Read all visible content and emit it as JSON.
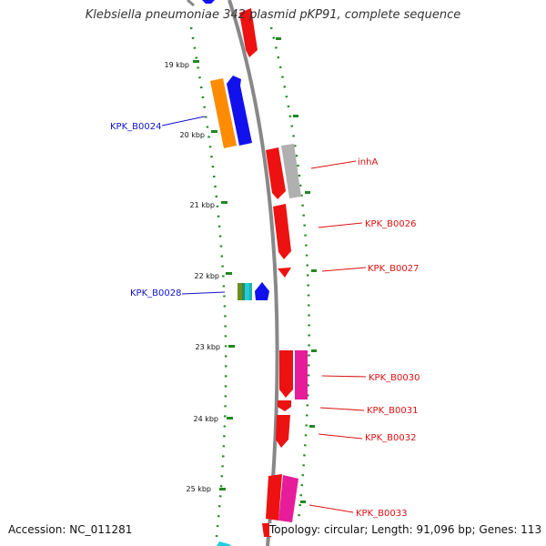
{
  "title": "Klebsiella pneumoniae 342 plasmid pKP91, complete sequence",
  "accession": "Accession: NC_011281",
  "topology": "Topology: circular; Length: 91,096 bp; Genes: 113",
  "ticks": [
    "19 kbp",
    "20 kbp",
    "21 kbp",
    "22 kbp",
    "23 kbp",
    "24 kbp",
    "25 kbp"
  ],
  "gene_labels": {
    "KPK_B0024": "KPK_B0024",
    "inhA": "inhA",
    "KPK_B0026": "KPK_B0026",
    "KPK_B0027": "KPK_B0027",
    "KPK_B0028": "KPK_B0028",
    "KPK_B0030": "KPK_B0030",
    "KPK_B0031": "KPK_B0031",
    "KPK_B0032": "KPK_B0032",
    "KPK_B0033": "KPK_B0033"
  },
  "colors": {
    "forward": "#ee1111",
    "reverse": "#1111ee",
    "label_forward": "#dd1111",
    "label_reverse": "#1111cc",
    "backbone": "#888888",
    "tick": "#228822",
    "gene_orange": "#ff8c00",
    "gene_grey": "#b0b0b0",
    "gene_magenta": "#e61c9a",
    "gene_cyan": "#22ccdd"
  }
}
